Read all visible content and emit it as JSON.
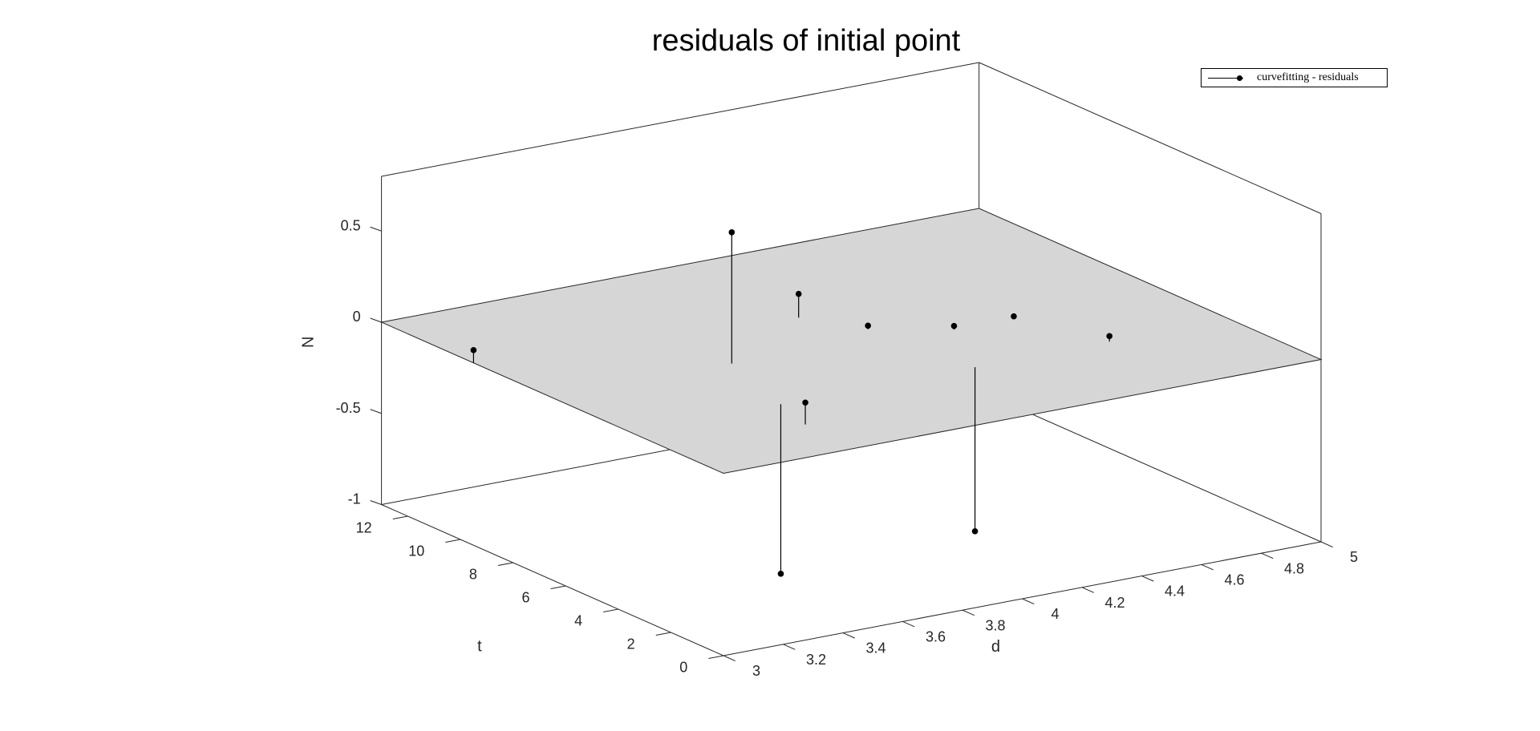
{
  "chart_data": {
    "type": "scatter",
    "title": "residuals of initial point",
    "xlabel": "d",
    "ylabel": "t",
    "zlabel": "N",
    "xlim": [
      3,
      5
    ],
    "ylim": [
      0,
      13
    ],
    "zlim": [
      -1,
      0.8
    ],
    "xticks": [
      "3",
      "3.2",
      "3.4",
      "3.6",
      "3.8",
      "4",
      "4.2",
      "4.4",
      "4.6",
      "4.8",
      "5"
    ],
    "yticks": [
      "0",
      "2",
      "4",
      "6",
      "8",
      "10",
      "12"
    ],
    "zticks": [
      "-1",
      "-0.5",
      "0",
      "0.5"
    ],
    "grid": false,
    "legend_position": "top-right",
    "surface": {
      "z": 0,
      "color": "#d6d6d6"
    },
    "series": [
      {
        "name": "curvefitting - residuals",
        "style": "stem",
        "points": [
          {
            "d": 3.0,
            "t": 9.5,
            "N": 0.07
          },
          {
            "d": 3.45,
            "t": 2.0,
            "N": 0.12
          },
          {
            "d": 3.5,
            "t": 3.5,
            "N": -0.93
          },
          {
            "d": 3.6,
            "t": 6.5,
            "N": 0.72
          },
          {
            "d": 4.15,
            "t": 3.5,
            "N": -0.9
          },
          {
            "d": 4.0,
            "t": 8.5,
            "N": 0.13
          },
          {
            "d": 4.1,
            "t": 7.0,
            "N": 0.02
          },
          {
            "d": 4.3,
            "t": 6.0,
            "N": 0.02
          },
          {
            "d": 4.5,
            "t": 6.0,
            "N": 0.01
          },
          {
            "d": 4.6,
            "t": 3.5,
            "N": 0.03
          }
        ]
      }
    ]
  }
}
